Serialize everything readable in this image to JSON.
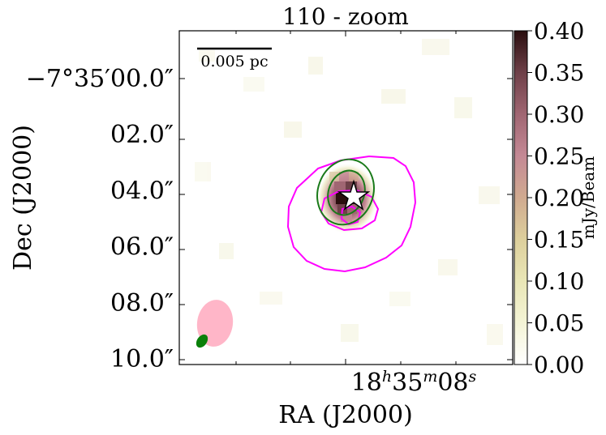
{
  "chart_data": {
    "type": "heatmap",
    "title": "110 - zoom",
    "xlabel": "RA (J2000)",
    "ylabel": "Dec (J2000)",
    "x_ticks": [
      {
        "base": "18",
        "h": "h",
        "m_val": "35",
        "m": "m",
        "s_val": "08",
        "s": "s"
      }
    ],
    "y_ticks": [
      "−7°35′00.0″",
      "02.0″",
      "04.0″",
      "06.0″",
      "08.0″",
      "10.0″"
    ],
    "y_tick_values": [
      0,
      2,
      4,
      6,
      8,
      10
    ],
    "y_range": [
      -1.7,
      10.2
    ],
    "colorbar": {
      "label": "mJy/Beam",
      "range": [
        0.0,
        0.4
      ],
      "ticks": [
        "0.00",
        "0.05",
        "0.10",
        "0.15",
        "0.20",
        "0.25",
        "0.30",
        "0.35",
        "0.40"
      ],
      "tick_values": [
        0.0,
        0.05,
        0.1,
        0.15,
        0.2,
        0.25,
        0.3,
        0.35,
        0.4
      ],
      "colors": [
        "#ffffff",
        "#f4f4d6",
        "#e9e6b6",
        "#ddcf9c",
        "#d0aa90",
        "#c48995",
        "#a06672",
        "#6e4048",
        "#2a0e0e"
      ]
    },
    "scalebar_label": "0.005 pc",
    "source_marker": "star",
    "contours": {
      "green": "#1a7a1a",
      "magenta": "#ff00ff"
    },
    "beams": {
      "large": "#ffb6c8",
      "small": "#0a800a"
    }
  }
}
